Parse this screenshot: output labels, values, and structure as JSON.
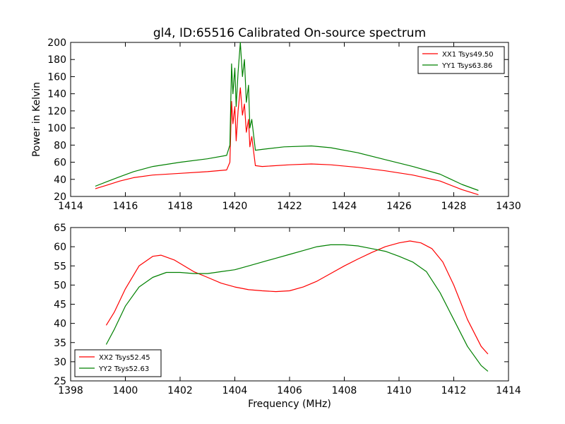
{
  "chart_data": [
    {
      "type": "line",
      "title": "gl4, ID:65516 Calibrated On-source spectrum",
      "xlabel": "",
      "ylabel": "Power in Kelvin",
      "xlim": [
        1414,
        1430
      ],
      "ylim": [
        20,
        200
      ],
      "xticks": [
        1414,
        1416,
        1418,
        1420,
        1422,
        1424,
        1426,
        1428,
        1430
      ],
      "yticks": [
        20,
        40,
        60,
        80,
        100,
        120,
        140,
        160,
        180,
        200
      ],
      "grid": false,
      "legend_position": "top-right",
      "series": [
        {
          "name": "XX1 Tsys49.50",
          "color": "#ff0000",
          "x": [
            1414.9,
            1415.3,
            1415.8,
            1416.3,
            1417.0,
            1418.0,
            1419.0,
            1419.7,
            1419.82,
            1419.88,
            1419.93,
            1420.0,
            1420.05,
            1420.12,
            1420.2,
            1420.28,
            1420.35,
            1420.42,
            1420.5,
            1420.55,
            1420.62,
            1420.75,
            1421.0,
            1422.0,
            1422.8,
            1423.5,
            1424.5,
            1425.5,
            1426.5,
            1427.5,
            1428.3,
            1428.9
          ],
          "y": [
            29,
            33,
            38,
            42,
            45,
            47,
            49,
            51,
            60,
            131,
            105,
            125,
            85,
            120,
            147,
            115,
            128,
            95,
            110,
            78,
            90,
            56,
            55,
            57,
            58,
            57,
            54,
            50,
            45,
            38,
            28,
            22
          ]
        },
        {
          "name": "YY1 Tsys63.86",
          "color": "#008000",
          "x": [
            1414.9,
            1415.3,
            1415.8,
            1416.3,
            1417.0,
            1418.0,
            1419.0,
            1419.7,
            1419.82,
            1419.88,
            1419.93,
            1420.0,
            1420.05,
            1420.12,
            1420.2,
            1420.28,
            1420.35,
            1420.42,
            1420.5,
            1420.55,
            1420.62,
            1420.75,
            1421.0,
            1421.8,
            1422.8,
            1423.5,
            1424.5,
            1425.5,
            1426.5,
            1427.5,
            1428.3,
            1428.9
          ],
          "y": [
            32,
            37,
            43,
            49,
            55,
            60,
            64,
            68,
            80,
            175,
            140,
            170,
            125,
            165,
            200,
            160,
            180,
            130,
            150,
            100,
            110,
            74,
            75,
            78,
            79,
            77,
            71,
            63,
            55,
            46,
            34,
            27
          ]
        }
      ]
    },
    {
      "type": "line",
      "title": "",
      "xlabel": "Frequency (MHz)",
      "ylabel": "",
      "xlim": [
        1398,
        1414
      ],
      "ylim": [
        25,
        65
      ],
      "xticks": [
        1398,
        1400,
        1402,
        1404,
        1406,
        1408,
        1410,
        1412,
        1414
      ],
      "yticks": [
        25,
        30,
        35,
        40,
        45,
        50,
        55,
        60,
        65
      ],
      "grid": false,
      "legend_position": "bottom-left",
      "series": [
        {
          "name": "XX2 Tsys52.45",
          "color": "#ff0000",
          "x": [
            1399.3,
            1399.6,
            1400.0,
            1400.5,
            1401.0,
            1401.3,
            1401.8,
            1402.5,
            1403.0,
            1403.5,
            1404.0,
            1404.5,
            1405.0,
            1405.5,
            1406.0,
            1406.5,
            1407.0,
            1407.5,
            1408.0,
            1408.5,
            1409.0,
            1409.5,
            1410.0,
            1410.4,
            1410.8,
            1411.2,
            1411.6,
            1412.0,
            1412.5,
            1413.0,
            1413.25
          ],
          "y": [
            39.5,
            43,
            49,
            55,
            57.5,
            57.8,
            56.5,
            53.5,
            52,
            50.5,
            49.5,
            48.8,
            48.5,
            48.3,
            48.5,
            49.5,
            51,
            53,
            55,
            56.8,
            58.5,
            60,
            61,
            61.5,
            61,
            59.5,
            56,
            50,
            41,
            34,
            32
          ]
        },
        {
          "name": "YY2 Tsys52.63",
          "color": "#008000",
          "x": [
            1399.3,
            1399.6,
            1400.0,
            1400.5,
            1401.0,
            1401.5,
            1402.0,
            1402.5,
            1403.0,
            1403.5,
            1404.0,
            1404.5,
            1405.0,
            1405.5,
            1406.0,
            1406.5,
            1407.0,
            1407.5,
            1408.0,
            1408.5,
            1409.0,
            1409.5,
            1410.0,
            1410.5,
            1411.0,
            1411.5,
            1412.0,
            1412.5,
            1413.0,
            1413.25
          ],
          "y": [
            34.5,
            38.5,
            44.5,
            49.5,
            52,
            53.3,
            53.3,
            53,
            53,
            53.5,
            54,
            55,
            56,
            57,
            58,
            59,
            60,
            60.5,
            60.5,
            60.2,
            59.5,
            58.8,
            57.5,
            56,
            53.5,
            48,
            41,
            34,
            29,
            27.5
          ]
        }
      ]
    }
  ]
}
